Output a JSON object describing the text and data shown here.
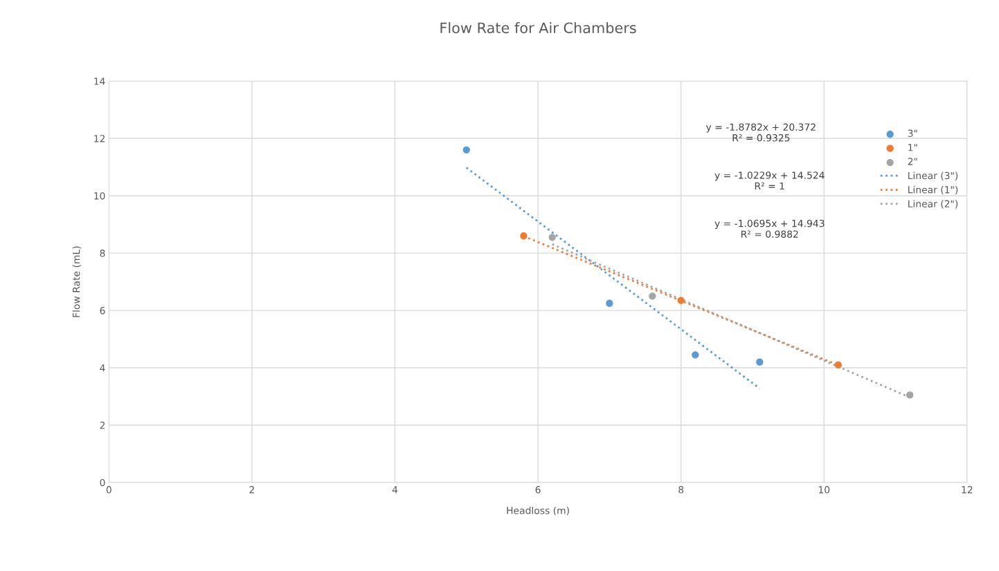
{
  "chart_data": {
    "type": "scatter",
    "title": "Flow Rate for Air Chambers",
    "xlabel": "Headloss (m)",
    "ylabel": "Flow Rate (mL)",
    "xlim": [
      0,
      12
    ],
    "xticks": [
      0,
      2,
      4,
      6,
      8,
      10,
      12
    ],
    "ylim": [
      0,
      14
    ],
    "yticks": [
      0,
      2,
      4,
      6,
      8,
      10,
      12,
      14
    ],
    "grid": true,
    "legend": "right",
    "series": [
      {
        "name": "3\"",
        "marker": "circle",
        "color": "#5b9bd5",
        "x": [
          5,
          7,
          8.2,
          9.1
        ],
        "values": [
          11.6,
          6.25,
          4.45,
          4.2
        ]
      },
      {
        "name": "1\"",
        "marker": "circle",
        "color": "#ed7d31",
        "x": [
          5.8,
          8,
          10.2
        ],
        "values": [
          8.6,
          6.35,
          4.1
        ]
      },
      {
        "name": "2\"",
        "marker": "circle",
        "color": "#a5a5a5",
        "x": [
          6.2,
          7.6,
          11.2
        ],
        "values": [
          8.55,
          6.5,
          3.05
        ]
      },
      {
        "name": "Linear (3\")",
        "type": "line",
        "marker": "none",
        "line_style": "dotted",
        "color": "#5b9bd5",
        "x": [
          5,
          9.1
        ],
        "values": [
          10.98,
          3.28
        ]
      },
      {
        "name": "Linear (1\")",
        "type": "line",
        "marker": "none",
        "line_style": "dotted",
        "color": "#ed7d31",
        "x": [
          5.8,
          10.2
        ],
        "values": [
          8.59,
          4.09
        ]
      },
      {
        "name": "Linear (2\")",
        "type": "line",
        "marker": "none",
        "line_style": "dotted",
        "color": "#a5a5a5",
        "x": [
          6.2,
          11.2
        ],
        "values": [
          8.31,
          2.97
        ]
      }
    ],
    "annotations": [
      "y = -1.8782x + 20.372\nR² = 0.9325",
      "y = -1.0229x + 14.524\nR² = 1",
      "y = -1.0695x + 14.943\nR² = 0.9882"
    ]
  }
}
